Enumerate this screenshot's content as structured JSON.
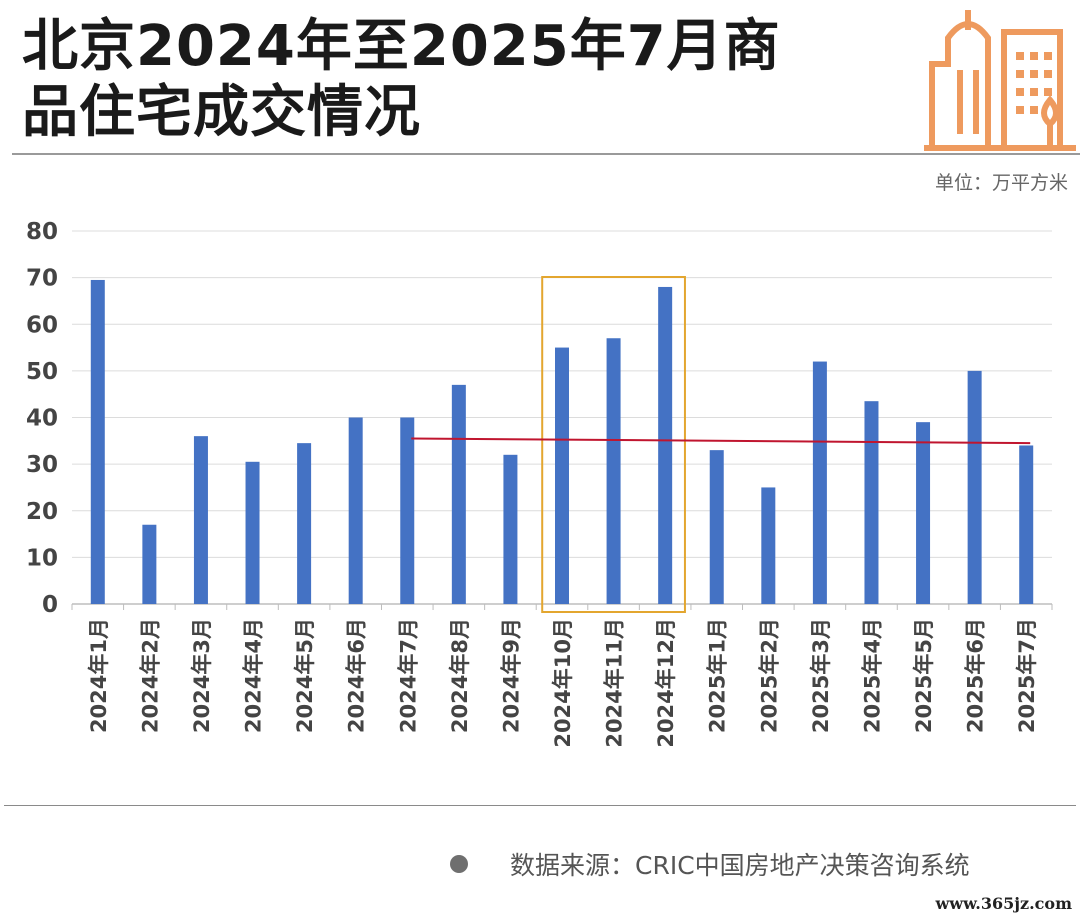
{
  "title": {
    "line1": "北京2024年至2025年7月商",
    "line2": "品住宅成交情况"
  },
  "unit": "单位：万平方米",
  "source": "数据来源：CRIC中国房地产决策咨询系统",
  "site": "www.365jz.com",
  "colors": {
    "bar": "#4472C4",
    "trend": "#C0152F",
    "highlight": "#E3A62F",
    "logo": "#EE9A5E"
  },
  "chart_data": {
    "type": "bar",
    "categories": [
      "2024年1月",
      "2024年2月",
      "2024年3月",
      "2024年4月",
      "2024年5月",
      "2024年6月",
      "2024年7月",
      "2024年8月",
      "2024年9月",
      "2024年10月",
      "2024年11月",
      "2024年12月",
      "2025年1月",
      "2025年2月",
      "2025年3月",
      "2025年4月",
      "2025年5月",
      "2025年6月",
      "2025年7月"
    ],
    "series": [
      {
        "values": [
          69.5,
          17,
          36,
          30.5,
          34.5,
          40,
          40,
          47,
          32,
          55,
          57,
          68,
          33,
          25,
          52,
          43.5,
          39,
          50,
          34
        ]
      }
    ],
    "ylim": [
      0,
      80
    ],
    "yticks": [
      0,
      10,
      20,
      30,
      40,
      50,
      60,
      70,
      80
    ],
    "grid": true,
    "trend_line": {
      "from": "2024年7月",
      "to": "2025年7月",
      "start_value": 35.5,
      "end_value": 34.5
    },
    "highlight": {
      "from": "2024年10月",
      "to": "2024年12月"
    }
  }
}
